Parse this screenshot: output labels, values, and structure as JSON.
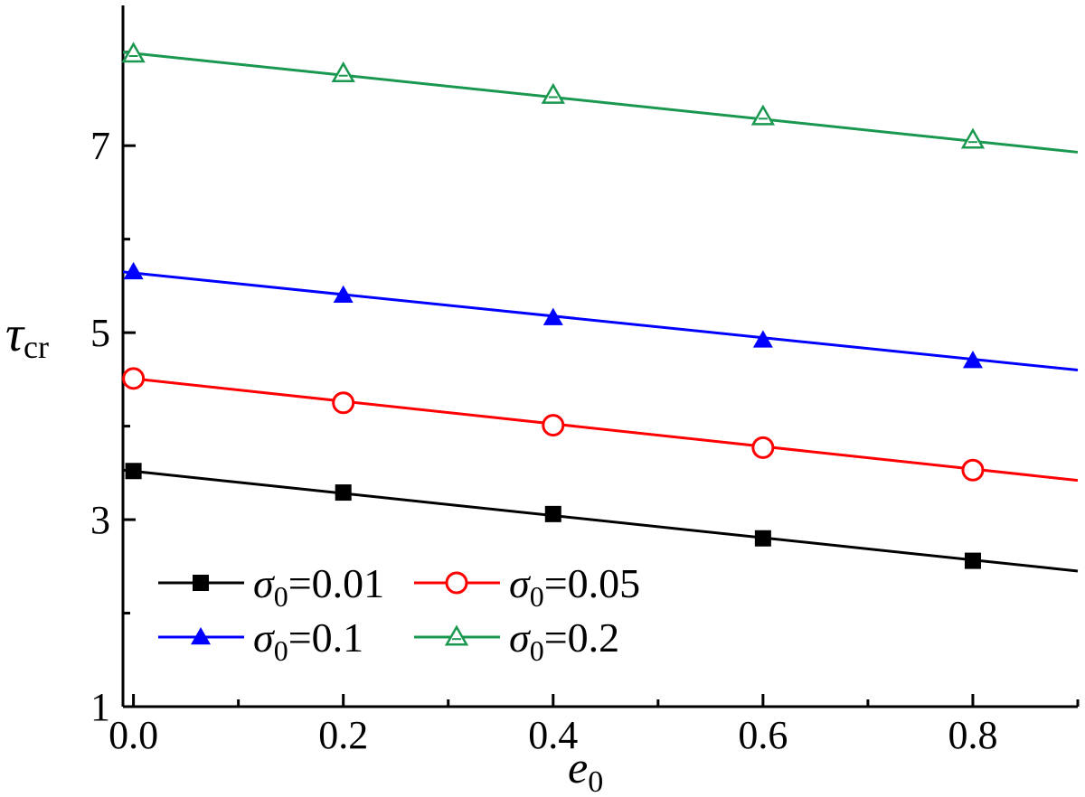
{
  "chart_data": {
    "type": "line",
    "title": "",
    "xlabel": {
      "main": "e",
      "sub": "0"
    },
    "ylabel": {
      "main": "τ",
      "sub": "cr"
    },
    "xlim": [
      -0.01,
      0.9
    ],
    "ylim": [
      1,
      8.5
    ],
    "xticks": [
      {
        "value": 0.0,
        "label": "0.0"
      },
      {
        "value": 0.2,
        "label": "0.2"
      },
      {
        "value": 0.4,
        "label": "0.4"
      },
      {
        "value": 0.6,
        "label": "0.6"
      },
      {
        "value": 0.8,
        "label": "0.8"
      }
    ],
    "yticks": [
      {
        "value": 1,
        "label": "1"
      },
      {
        "value": 3,
        "label": "3"
      },
      {
        "value": 5,
        "label": "5"
      },
      {
        "value": 7,
        "label": "7"
      }
    ],
    "grid": false,
    "legend_position": "bottom-left",
    "markers_x": [
      0.0,
      0.2,
      0.4,
      0.6,
      0.8
    ],
    "series": [
      {
        "name_main": "σ",
        "name_sub": "0",
        "name_value": "=0.01",
        "color": "#000000",
        "marker": "filled-square",
        "line": [
          [
            -0.01,
            3.53
          ],
          [
            0.9,
            2.45
          ]
        ],
        "values": [
          3.52,
          3.29,
          3.06,
          2.8,
          2.56
        ]
      },
      {
        "name_main": "σ",
        "name_sub": "0",
        "name_value": "=0.05",
        "color": "#ff0000",
        "marker": "open-circle",
        "line": [
          [
            -0.01,
            4.52
          ],
          [
            0.9,
            3.42
          ]
        ],
        "values": [
          4.51,
          4.25,
          4.01,
          3.77,
          3.53
        ]
      },
      {
        "name_main": "σ",
        "name_sub": "0",
        "name_value": "=0.1",
        "color": "#0000ff",
        "marker": "filled-triangle",
        "line": [
          [
            -0.01,
            5.65
          ],
          [
            0.9,
            4.6
          ]
        ],
        "values": [
          5.65,
          5.4,
          5.16,
          4.92,
          4.7
        ]
      },
      {
        "name_main": "σ",
        "name_sub": "0",
        "name_value": "=0.2",
        "color": "#1a9850",
        "marker": "open-triangle",
        "line": [
          [
            -0.01,
            8.0
          ],
          [
            0.9,
            6.93
          ]
        ],
        "values": [
          7.98,
          7.77,
          7.54,
          7.31,
          7.06
        ]
      }
    ]
  }
}
